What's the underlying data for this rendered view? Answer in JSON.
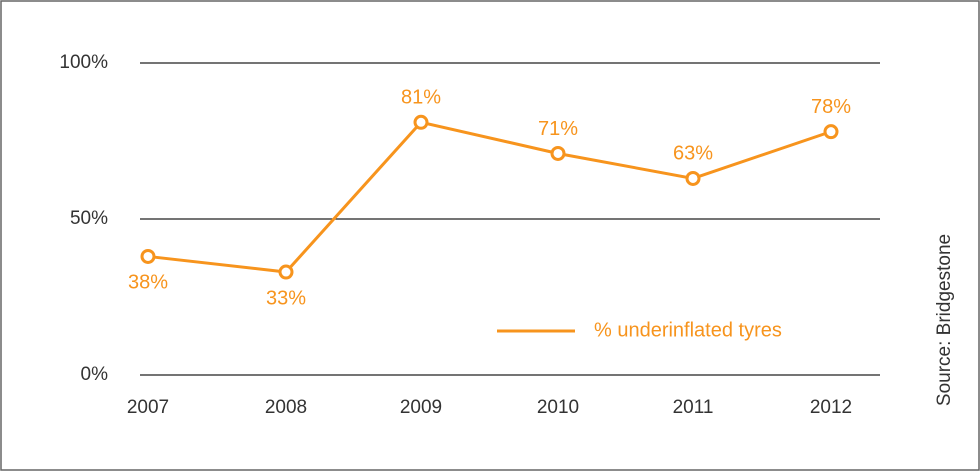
{
  "chart_data": {
    "type": "line",
    "categories": [
      "2007",
      "2008",
      "2009",
      "2010",
      "2011",
      "2012"
    ],
    "series": [
      {
        "name": "% underinflated tyres",
        "color": "#f7941d",
        "values": [
          38,
          33,
          81,
          71,
          63,
          78
        ],
        "value_labels": [
          "38%",
          "33%",
          "81%",
          "71%",
          "63%",
          "78%"
        ]
      }
    ],
    "ylim": [
      0,
      100
    ],
    "yticks": [
      {
        "value": 0,
        "label": "0%"
      },
      {
        "value": 50,
        "label": "50%"
      },
      {
        "value": 100,
        "label": "100%"
      }
    ],
    "grid": true,
    "legend": "lower right",
    "source": "Source: Bridgestone"
  }
}
